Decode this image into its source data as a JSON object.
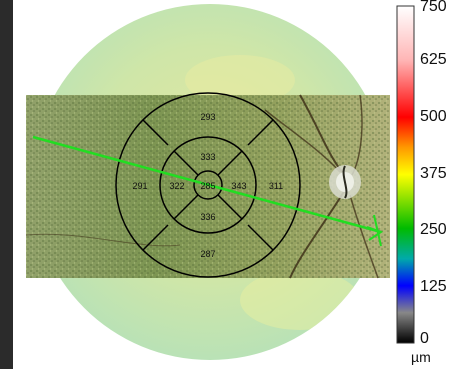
{
  "etdrs_values": {
    "outer_superior": "293",
    "inner_superior": "333",
    "outer_temporal": "291",
    "inner_temporal": "322",
    "center": "285",
    "inner_nasal": "343",
    "outer_nasal": "311",
    "inner_inferior": "336",
    "outer_inferior": "287"
  },
  "colorbar": {
    "labels": [
      "750",
      "625",
      "500",
      "375",
      "250",
      "125",
      "0"
    ],
    "unit": "µm",
    "colors": [
      "#ffffff",
      "#ffb0b0",
      "#ff0000",
      "#ffff00",
      "#00c000",
      "#0000ff",
      "#000000"
    ]
  },
  "colors": {
    "scan_line": "#22dd22",
    "grid": "#000000",
    "map_tint": "#cfe6a0"
  }
}
